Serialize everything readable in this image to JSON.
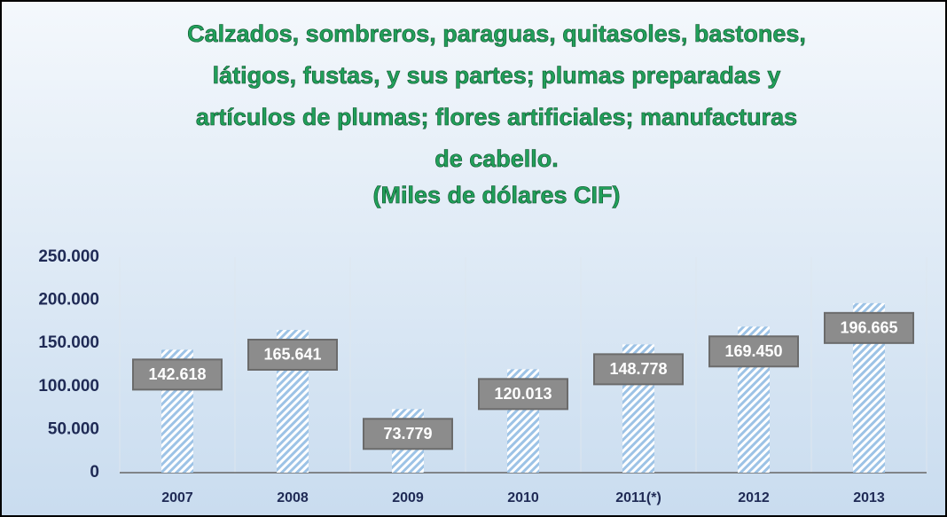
{
  "chart_data": {
    "type": "bar",
    "title": [
      "Calzados, sombreros, paraguas, quitasoles, bastones,",
      "látigos, fustas, y sus partes; plumas preparadas y",
      "artículos de plumas; flores artificiales; manufacturas",
      "de cabello."
    ],
    "subtitle": "(Miles de dólares CIF)",
    "categories": [
      "2007",
      "2008",
      "2009",
      "2010",
      "2011(*)",
      "2012",
      "2013"
    ],
    "values": [
      142618,
      165641,
      73779,
      120013,
      148778,
      169450,
      196665
    ],
    "value_labels": [
      "142.618",
      "165.641",
      "73.779",
      "120.013",
      "148.778",
      "169.450",
      "196.665"
    ],
    "color": "#9dc3e6",
    "ylim": [
      0,
      250000
    ],
    "yticks": [
      0,
      {
        "value": 50000,
        "label": "50.000"
      },
      {
        "value": 100000,
        "label": "100.000"
      },
      {
        "value": 150000,
        "label": "150.000"
      },
      {
        "value": 200000,
        "label": "200.000"
      },
      {
        "value": 250000,
        "label": "250.000"
      }
    ],
    "grid": true
  }
}
